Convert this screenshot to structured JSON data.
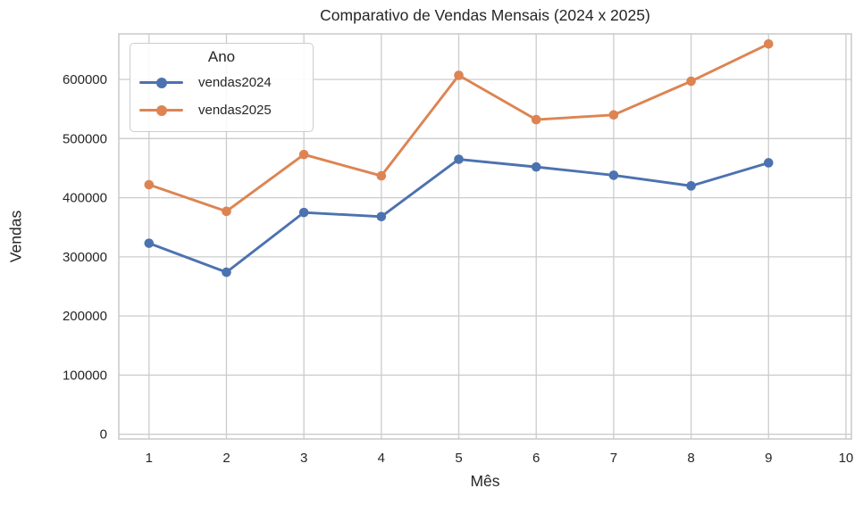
{
  "figure": {
    "title": "Comparativo de Vendas Mensais (2024 x 2025)",
    "xlabel": "Mês",
    "ylabel": "Vendas"
  },
  "legend": {
    "title": "Ano",
    "entries": [
      {
        "label": "vendas2024",
        "color": "#4C72B0"
      },
      {
        "label": "vendas2025",
        "color": "#DD8452"
      }
    ]
  },
  "chart_data": {
    "type": "line",
    "title": "Comparativo de Vendas Mensais (2024 x 2025)",
    "xlabel": "Mês",
    "ylabel": "Vendas",
    "x": [
      1,
      2,
      3,
      4,
      5,
      6,
      7,
      8,
      9
    ],
    "series": [
      {
        "name": "vendas2024",
        "color": "#4C72B0",
        "values": [
          323000,
          274000,
          375000,
          368000,
          465000,
          452000,
          438000,
          420000,
          459000
        ]
      },
      {
        "name": "vendas2025",
        "color": "#DD8452",
        "values": [
          422000,
          377000,
          473000,
          437000,
          607000,
          532000,
          540000,
          597000,
          660000
        ]
      }
    ],
    "x_ticks": [
      1,
      2,
      3,
      4,
      5,
      6,
      7,
      8,
      9,
      10
    ],
    "y_ticks": [
      0,
      100000,
      200000,
      300000,
      400000,
      500000,
      600000
    ],
    "xlim": [
      0.61,
      10.07
    ],
    "ylim": [
      -8000,
      677000
    ],
    "grid": true,
    "legend_title": "Ano",
    "legend_position": "upper-left",
    "colors": {
      "grid": "#cccccc",
      "spine": "#cccccc",
      "text": "#262626"
    }
  }
}
